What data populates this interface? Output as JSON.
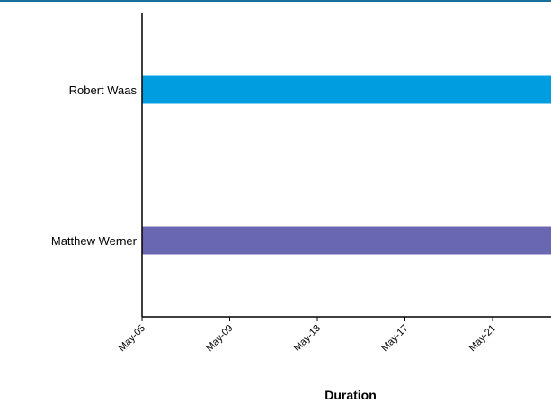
{
  "chart_data": {
    "type": "bar",
    "orientation": "horizontal",
    "title": "",
    "xlabel": "Duration",
    "ylabel": "",
    "categories": [
      "Robert Waas",
      "Matthew Werner"
    ],
    "series": [
      {
        "values": [
          {
            "start": "May-05",
            "end": "May-24"
          },
          {
            "start": "May-05",
            "end": "May-24"
          }
        ]
      }
    ],
    "bar_colors": [
      "#009ee0",
      "#6a67b2"
    ],
    "x_ticks": [
      "May-05",
      "May-09",
      "May-13",
      "May-17",
      "May-21"
    ],
    "grid": false,
    "legend": "none"
  },
  "colors": {
    "header_rule": "#1a6e9c",
    "axis": "#000000"
  }
}
